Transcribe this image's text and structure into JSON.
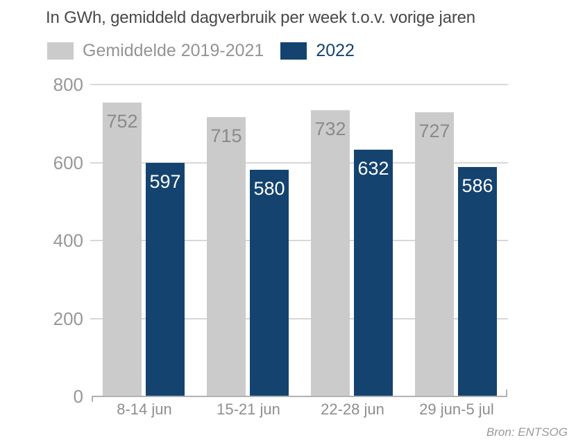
{
  "title": "In GWh, gemiddeld dagverbruik per week t.o.v. vorige jaren",
  "source": "Bron: ENTSOG",
  "legend": [
    {
      "label": "Gemiddelde 2019-2021",
      "swatch_color": "#cbcbcb",
      "text_color": "#949494"
    },
    {
      "label": "2022",
      "swatch_color": "#14436f",
      "text_color": "#14436f"
    }
  ],
  "chart_data": {
    "type": "bar",
    "title": "In GWh, gemiddeld dagverbruik per week t.o.v. vorige jaren",
    "categories": [
      "8-14 jun",
      "15-21 jun",
      "22-28 jun",
      "29 jun-5 jul"
    ],
    "series": [
      {
        "name": "Gemiddelde 2019-2021",
        "values": [
          752,
          715,
          732,
          727
        ],
        "color": "#cbcbcb",
        "label_color": "#8a8a8a"
      },
      {
        "name": "2022",
        "values": [
          597,
          580,
          632,
          586
        ],
        "color": "#14436f",
        "label_color": "#ffffff"
      }
    ],
    "xlabel": "",
    "ylabel": "",
    "ylim": [
      0,
      800
    ],
    "yticks": [
      0,
      200,
      400,
      600,
      800
    ],
    "grid": true,
    "legend_position": "top",
    "source": "Bron: ENTSOG"
  }
}
